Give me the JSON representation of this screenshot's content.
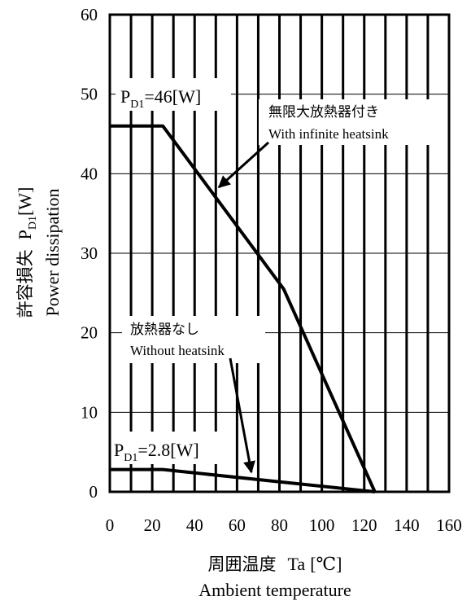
{
  "chart_data": {
    "type": "line",
    "xlim": [
      0,
      160
    ],
    "ylim": [
      0,
      60
    ],
    "x_ticks": [
      0,
      20,
      40,
      60,
      80,
      100,
      120,
      140,
      160
    ],
    "y_ticks": [
      0,
      10,
      20,
      30,
      40,
      50,
      60
    ],
    "grid": true,
    "xlabel": {
      "jp": "周囲温度",
      "symbol": "Ta",
      "unit": "[℃]",
      "en": "Ambient temperature"
    },
    "ylabel": {
      "jp": "許容損失",
      "symbol": "P",
      "sub": "D1",
      "unit": "[W]",
      "en": "Power dissipation"
    },
    "series": [
      {
        "label_jp": "無限大放熱器付き",
        "label_en": "With infinite heatsink",
        "x": [
          0,
          25,
          82,
          125
        ],
        "y": [
          46,
          46,
          25.5,
          0
        ]
      },
      {
        "label_jp": "放熱器なし",
        "label_en": "Without heatsink",
        "x": [
          0,
          25,
          125
        ],
        "y": [
          2.8,
          2.8,
          0
        ]
      }
    ],
    "annotations": [
      {
        "prefix": "P",
        "sub": "D1",
        "text": "=46[W]"
      },
      {
        "prefix": "P",
        "sub": "D1",
        "text": "=2.8[W]"
      }
    ]
  }
}
